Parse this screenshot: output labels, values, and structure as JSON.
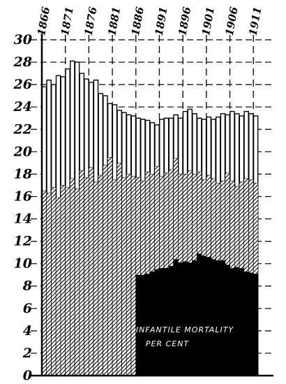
{
  "chart_data": {
    "type": "bar",
    "x": [
      1866,
      1867,
      1868,
      1869,
      1870,
      1871,
      1872,
      1873,
      1874,
      1875,
      1876,
      1877,
      1878,
      1879,
      1880,
      1881,
      1882,
      1883,
      1884,
      1885,
      1886,
      1887,
      1888,
      1889,
      1890,
      1891,
      1892,
      1893,
      1894,
      1895,
      1896,
      1897,
      1898,
      1899,
      1900,
      1901,
      1902,
      1903,
      1904,
      1905,
      1906,
      1907,
      1908,
      1909,
      1910,
      1911
    ],
    "x_tick_labels": [
      "1866",
      "1871",
      "1876",
      "1881",
      "1886",
      "1891",
      "1896",
      "1901",
      "1906",
      "1911"
    ],
    "y_tick_labels": [
      "0",
      "2",
      "4",
      "6",
      "8",
      "10",
      "12",
      "14",
      "16",
      "18",
      "20",
      "22",
      "24",
      "26",
      "28",
      "30"
    ],
    "ylim": [
      0,
      30
    ],
    "grid": true,
    "annotation": [
      "INFANTILE MORTALITY",
      "PER CENT"
    ],
    "series": [
      {
        "values": [
          25.8,
          26.4,
          26.0,
          26.8,
          26.7,
          27.4,
          28.1,
          28.0,
          27.0,
          26.5,
          26.2,
          26.4,
          25.2,
          25.0,
          24.3,
          24.2,
          23.7,
          23.5,
          23.3,
          23.2,
          23.0,
          22.9,
          22.8,
          22.6,
          22.4,
          22.9,
          23.0,
          23.0,
          23.3,
          23.0,
          23.6,
          23.8,
          23.4,
          23.0,
          22.9,
          23.1,
          22.9,
          23.1,
          23.4,
          23.3,
          23.6,
          23.4,
          23.2,
          23.6,
          23.4,
          23.2
        ]
      },
      {
        "values": [
          16.5,
          16.3,
          16.8,
          15.9,
          17.0,
          16.8,
          17.6,
          16.7,
          18.3,
          17.7,
          18.6,
          17.3,
          17.9,
          18.8,
          19.5,
          17.5,
          19.0,
          17.7,
          18.0,
          17.8,
          17.7,
          17.4,
          18.2,
          18.0,
          18.7,
          17.8,
          18.1,
          18.4,
          19.4,
          18.0,
          18.0,
          18.3,
          18.0,
          18.2,
          17.5,
          17.9,
          17.6,
          17.2,
          17.4,
          18.1,
          17.4,
          16.9,
          17.3,
          17.6,
          17.5,
          17.2
        ]
      },
      {
        "values": [
          null,
          null,
          null,
          null,
          null,
          null,
          null,
          null,
          null,
          null,
          null,
          null,
          null,
          null,
          null,
          null,
          null,
          null,
          null,
          null,
          9.0,
          9.0,
          9.1,
          9.3,
          9.5,
          9.6,
          9.6,
          9.8,
          10.4,
          10.1,
          10.2,
          10.1,
          10.3,
          10.9,
          10.7,
          10.6,
          10.4,
          10.3,
          10.3,
          9.9,
          9.6,
          9.7,
          9.6,
          9.3,
          9.2,
          9.1
        ]
      }
    ]
  }
}
